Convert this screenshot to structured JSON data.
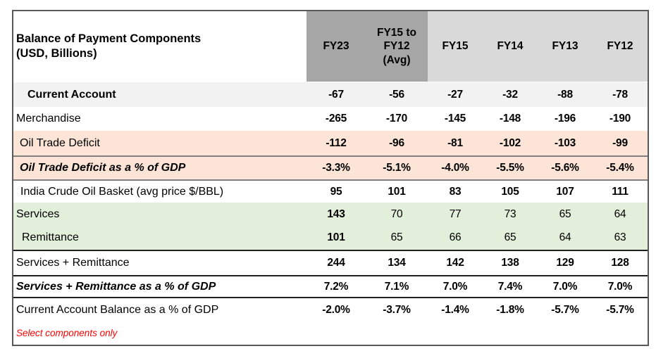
{
  "table": {
    "title": "Balance of Payment Components\n(USD, Billions)",
    "columns": [
      "FY23",
      "FY15 to\nFY12\n(Avg)",
      "FY15",
      "FY14",
      "FY13",
      "FY12"
    ],
    "rows": [
      {
        "label": "Current Account",
        "values": [
          "-67",
          "-56",
          "-27",
          "-32",
          "-88",
          "-78"
        ]
      },
      {
        "label": "Merchandise",
        "values": [
          "-265",
          "-170",
          "-145",
          "-148",
          "-196",
          "-190"
        ]
      },
      {
        "label": "Oil Trade Deficit",
        "values": [
          "-112",
          "-96",
          "-81",
          "-102",
          "-103",
          "-99"
        ]
      },
      {
        "label": "Oil Trade Deficit as a % of GDP",
        "values": [
          "-3.3%",
          "-5.1%",
          "-4.0%",
          "-5.5%",
          "-5.6%",
          "-5.4%"
        ]
      },
      {
        "label": "India Crude Oil Basket (avg price $/BBL)",
        "values": [
          "95",
          "101",
          "83",
          "105",
          "107",
          "111"
        ]
      },
      {
        "label": "Services",
        "values": [
          "143",
          "70",
          "77",
          "73",
          "65",
          "64"
        ]
      },
      {
        "label": "Remittance",
        "values": [
          "101",
          "65",
          "66",
          "65",
          "64",
          "63"
        ]
      },
      {
        "label": "Services + Remittance",
        "values": [
          "244",
          "134",
          "142",
          "138",
          "129",
          "128"
        ]
      },
      {
        "label": "Services + Remittance as a % of GDP",
        "values": [
          "7.2%",
          "7.1%",
          "7.0%",
          "7.4%",
          "7.0%",
          "7.0%"
        ]
      },
      {
        "label": "Current Account Balance as a % of GDP",
        "values": [
          "-2.0%",
          "-3.7%",
          "-1.4%",
          "-1.8%",
          "-5.7%",
          "-5.7%"
        ]
      }
    ],
    "footnote": "Select components only",
    "colors": {
      "header_dark": "#a6a6a6",
      "header_light": "#d9d9d9",
      "row_shaded_gray": "#f2f2f2",
      "row_peach": "#fce4d6",
      "row_green": "#e2efda",
      "separator_gray": "#808080",
      "separator_black": "#1f1f1f",
      "outer_border": "#595959",
      "footnote_red": "#ff0000"
    }
  }
}
